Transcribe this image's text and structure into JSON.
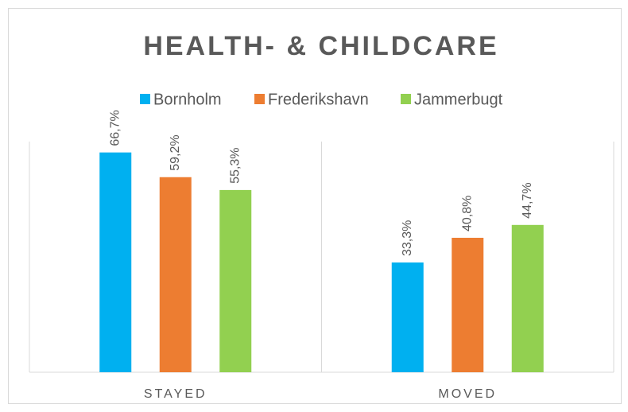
{
  "chart_data": {
    "type": "bar",
    "title": "HEALTH- & CHILDCARE",
    "categories": [
      "STAYED",
      "MOVED"
    ],
    "series": [
      {
        "name": "Bornholm",
        "color": "#00b0f0",
        "values": [
          66.7,
          33.3
        ],
        "value_labels": [
          "66,7%",
          "33,3%"
        ]
      },
      {
        "name": "Frederikshavn",
        "color": "#ed7d31",
        "values": [
          59.2,
          40.8
        ],
        "value_labels": [
          "59,2%",
          "40,8%"
        ]
      },
      {
        "name": "Jammerbugt",
        "color": "#92d050",
        "values": [
          55.3,
          44.7
        ],
        "value_labels": [
          "55,3%",
          "44,7%"
        ]
      }
    ],
    "ylim": [
      0,
      70
    ],
    "legend": "top"
  }
}
